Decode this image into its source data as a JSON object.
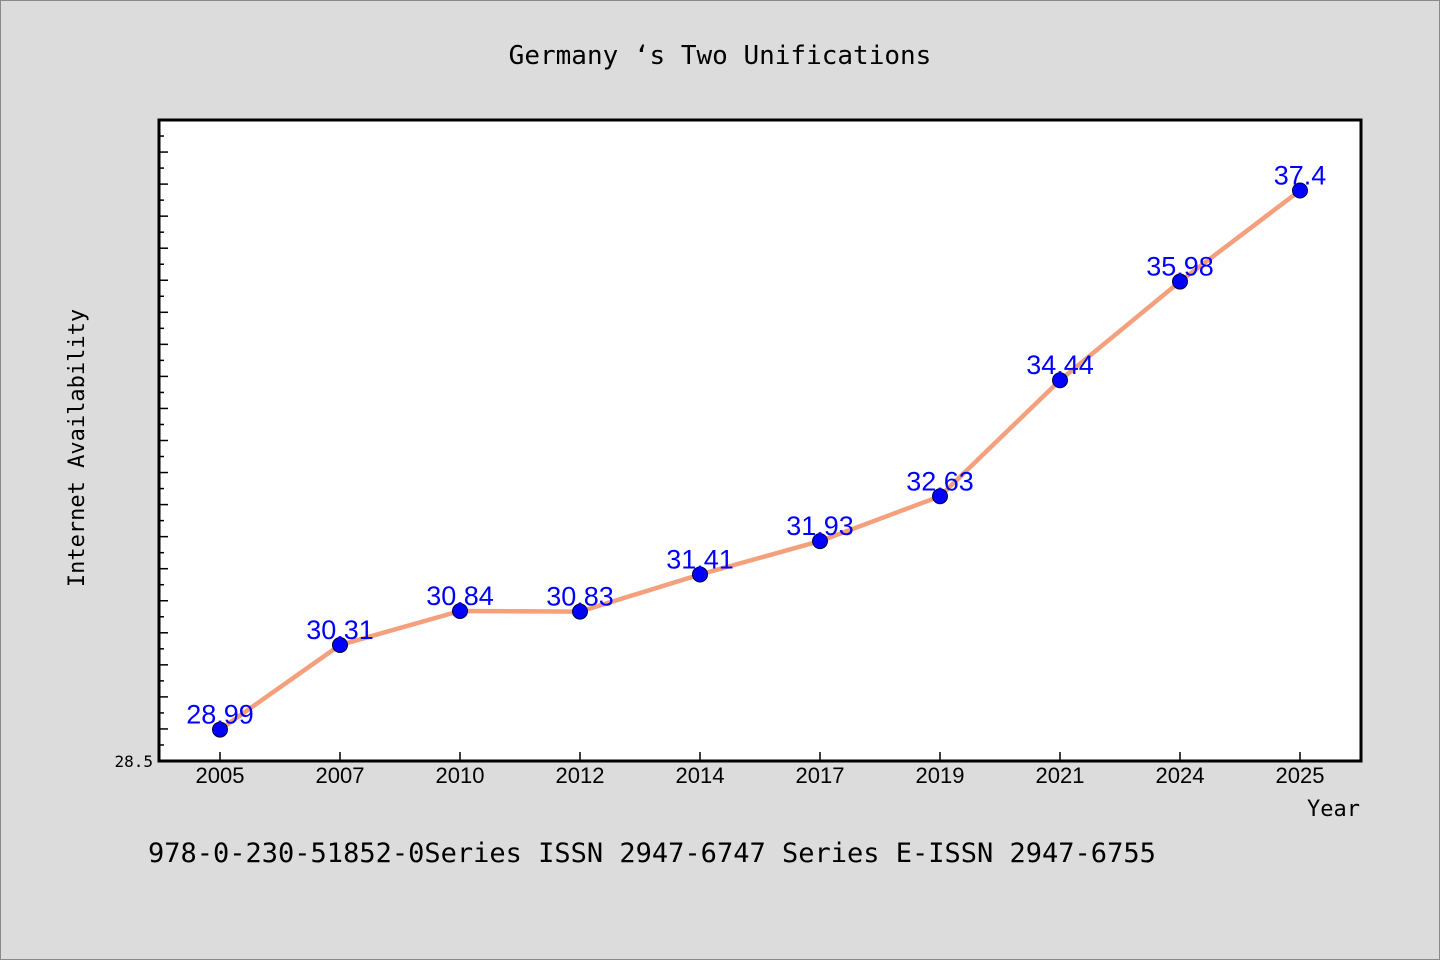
{
  "chart_data": {
    "type": "line",
    "title": "Germany ‘s Two Unifications",
    "xlabel": "Year",
    "ylabel": "Internet Availability",
    "categories": [
      "2005",
      "2007",
      "2010",
      "2012",
      "2014",
      "2017",
      "2019",
      "2021",
      "2024",
      "2025"
    ],
    "series": [
      {
        "values": [
          28.99,
          30.31,
          30.84,
          30.83,
          31.41,
          31.93,
          32.63,
          34.44,
          35.98,
          37.4
        ],
        "data_labels": [
          "28.99",
          "30.31",
          "30.84",
          "30.83",
          "31.41",
          "31.93",
          "32.63",
          "34.44",
          "35.98",
          "37.4"
        ]
      }
    ],
    "ylim": [
      28.5,
      38.5
    ],
    "yticks_labeled": [
      "28.5"
    ],
    "grid": false,
    "legend": "none",
    "colors": {
      "line": "#f4a07c",
      "marker": "#0000ff",
      "data_label": "#0000ff",
      "plot_background": "#ffffff",
      "page_background": "#dcdcdc"
    }
  },
  "footer": {
    "text": "978-0-230-51852-0Series ISSN 2947-6747 Series E-ISSN 2947-6755"
  }
}
